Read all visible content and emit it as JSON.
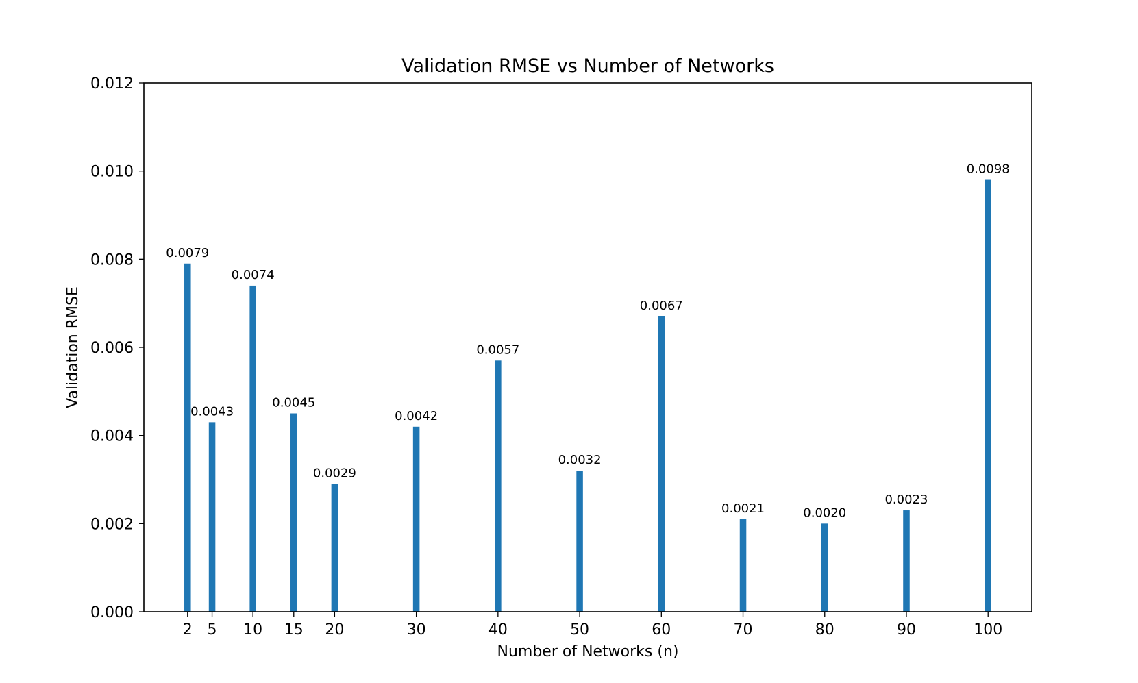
{
  "chart_data": {
    "type": "bar",
    "title": "Validation RMSE vs Number of Networks",
    "xlabel": "Number of Networks (n)",
    "ylabel": "Validation RMSE",
    "x": [
      2,
      5,
      10,
      15,
      20,
      30,
      40,
      50,
      60,
      70,
      80,
      90,
      100
    ],
    "values": [
      0.0079,
      0.0043,
      0.0074,
      0.0045,
      0.0029,
      0.0042,
      0.0057,
      0.0032,
      0.0067,
      0.0021,
      0.002,
      0.0023,
      0.0098
    ],
    "x_tick_labels": [
      "2",
      "5",
      "10",
      "15",
      "20",
      "30",
      "40",
      "50",
      "60",
      "70",
      "80",
      "90",
      "100"
    ],
    "data_labels": [
      "0.0079",
      "0.0043",
      "0.0074",
      "0.0045",
      "0.0029",
      "0.0042",
      "0.0057",
      "0.0032",
      "0.0067",
      "0.0021",
      "0.0020",
      "0.0023",
      "0.0098"
    ],
    "y_ticks": [
      0,
      0.002,
      0.004,
      0.006,
      0.008,
      0.01,
      0.012
    ],
    "y_tick_labels": [
      "0.000",
      "0.002",
      "0.004",
      "0.006",
      "0.008",
      "0.010",
      "0.012"
    ],
    "xlim": [
      -3.35,
      105.35
    ],
    "ylim": [
      0,
      0.012
    ],
    "bar_width": 0.8,
    "bar_color": "#1f77b4",
    "grid": false,
    "legend": "none"
  }
}
